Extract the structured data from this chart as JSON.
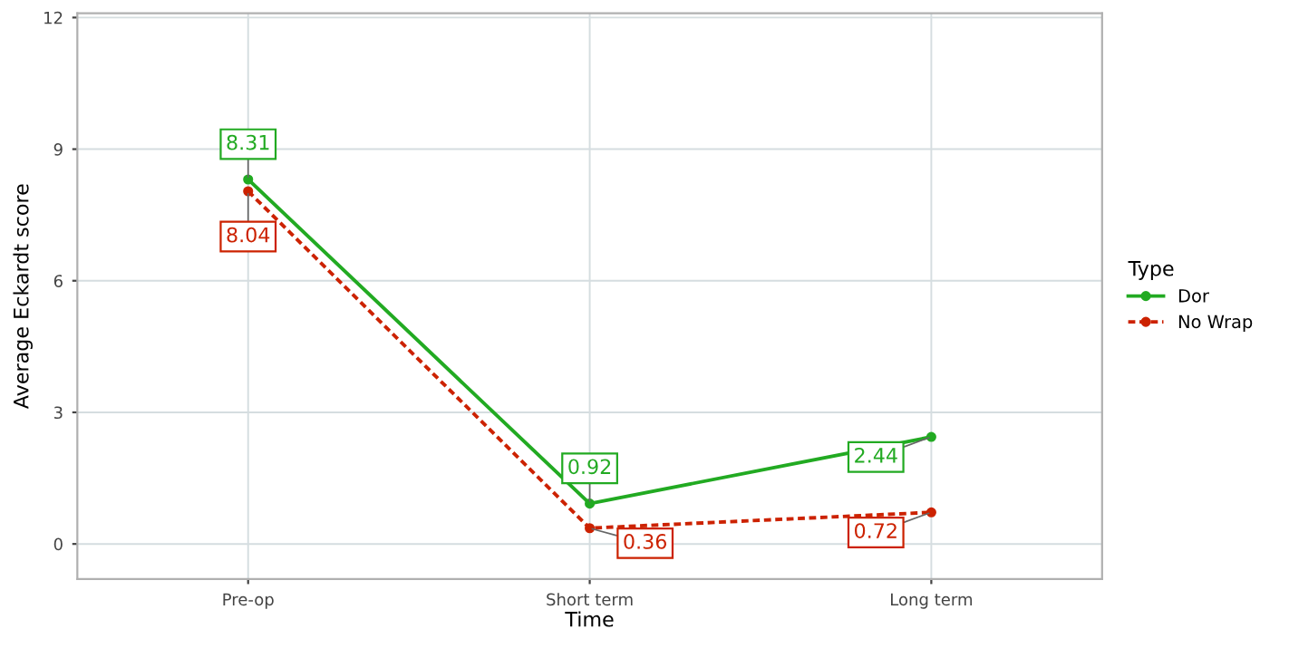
{
  "chart_data": {
    "type": "line",
    "xlabel": "Time",
    "ylabel": "Average Eckardt score",
    "legend_title": "Type",
    "categories": [
      "Pre-op",
      "Short term",
      "Long term"
    ],
    "series": [
      {
        "name": "Dor",
        "color": "#22aa22",
        "values": [
          8.31,
          0.92,
          2.44
        ],
        "line_style": "solid"
      },
      {
        "name": "No Wrap",
        "color": "#cc2200",
        "values": [
          8.04,
          0.36,
          0.72
        ],
        "line_style": "dotted"
      }
    ],
    "ylim": [
      -0.8,
      12.1
    ],
    "yticks": [
      0,
      3,
      6,
      9,
      12
    ],
    "grid": true,
    "legend": "right",
    "marker": "circle",
    "data_labels": true
  }
}
